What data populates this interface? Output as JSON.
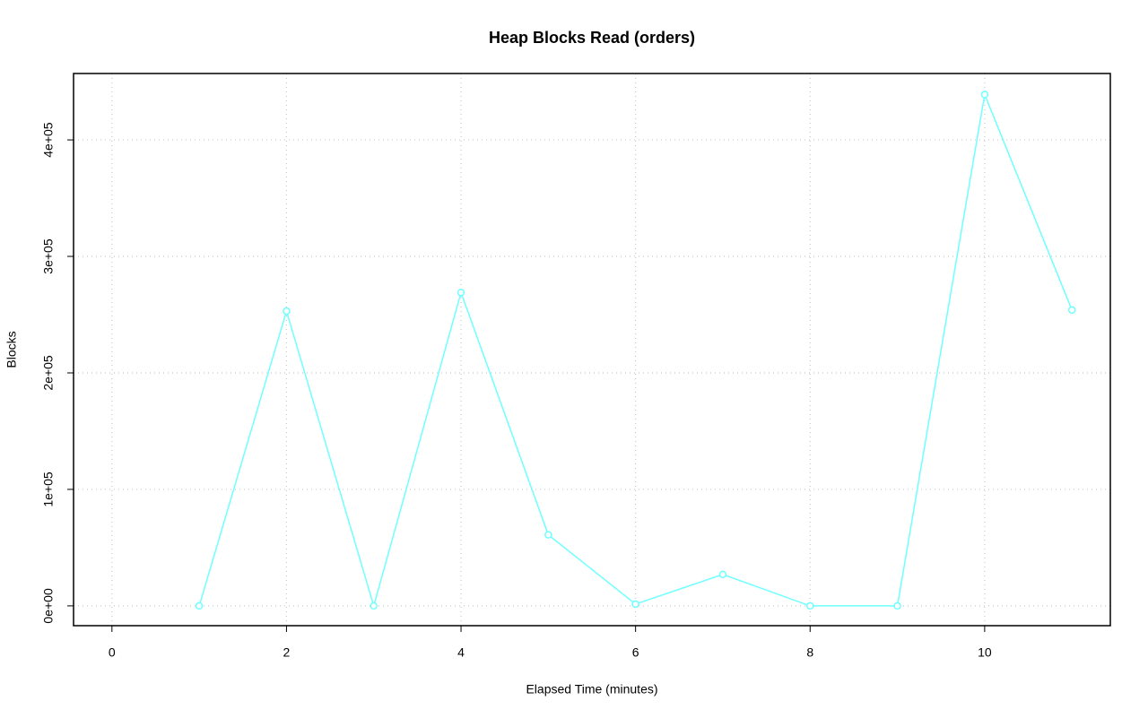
{
  "chart_data": {
    "type": "line",
    "title": "Heap Blocks Read (orders)",
    "x_label": "Elapsed Time (minutes)",
    "y_label": "Blocks",
    "x": [
      1,
      2,
      3,
      4,
      5,
      6,
      7,
      8,
      9,
      10,
      11
    ],
    "series": [
      {
        "name": "orders",
        "color": "#70ffff",
        "values": [
          0,
          253000,
          0,
          269000,
          61000,
          1500,
          27000,
          0,
          0,
          439000,
          254000
        ]
      }
    ],
    "xlim": [
      -0.44,
      11.44
    ],
    "xticks": [
      0,
      2,
      4,
      6,
      8,
      10
    ],
    "ylim": [
      -17000,
      457000
    ],
    "yticks": [
      {
        "value": 0,
        "label": "0e+00"
      },
      {
        "value": 100000,
        "label": "1e+05"
      },
      {
        "value": 200000,
        "label": "2e+05"
      },
      {
        "value": 300000,
        "label": "3e+05"
      },
      {
        "value": 400000,
        "label": "4e+05"
      }
    ],
    "grid": true
  }
}
